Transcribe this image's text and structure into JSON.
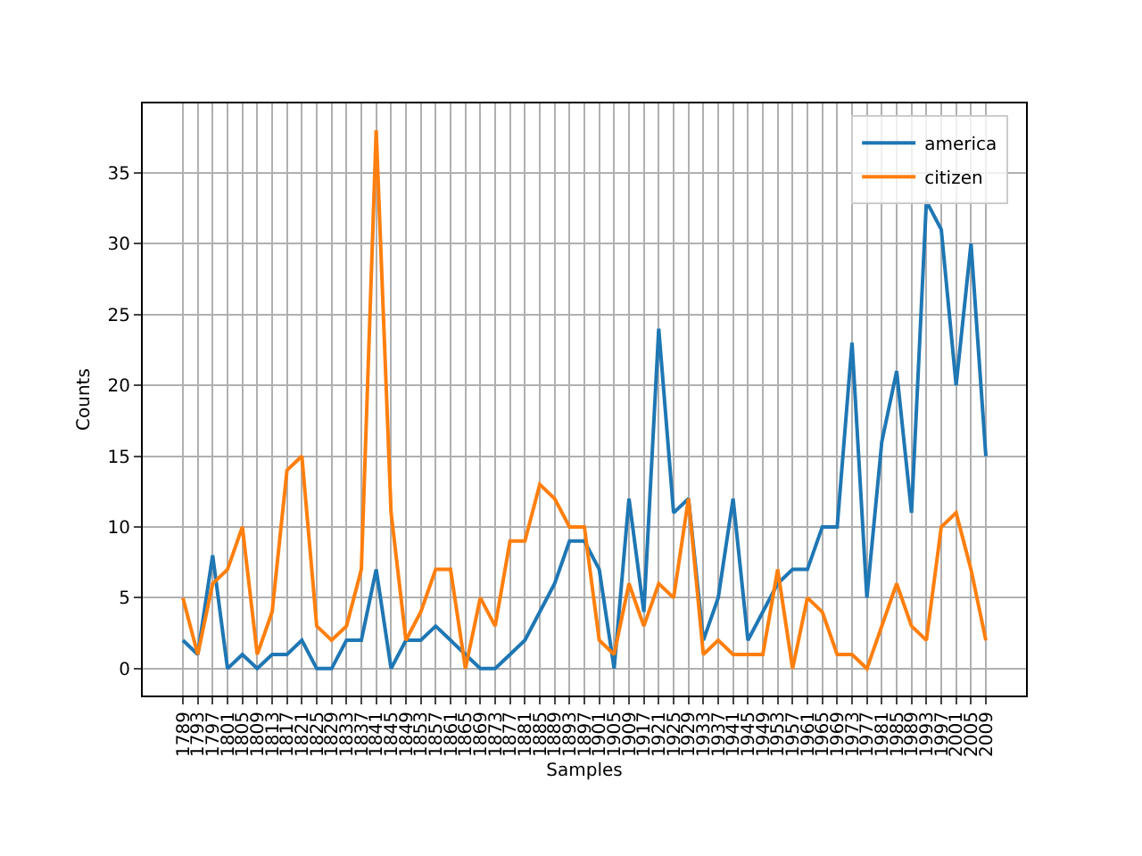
{
  "chart_data": {
    "type": "line",
    "xlabel": "Samples",
    "ylabel": "Counts",
    "categories": [
      "1789",
      "1793",
      "1797",
      "1801",
      "1805",
      "1809",
      "1813",
      "1817",
      "1821",
      "1825",
      "1829",
      "1833",
      "1837",
      "1841",
      "1845",
      "1849",
      "1853",
      "1857",
      "1861",
      "1865",
      "1869",
      "1873",
      "1877",
      "1881",
      "1885",
      "1889",
      "1893",
      "1897",
      "1901",
      "1905",
      "1909",
      "1917",
      "1921",
      "1925",
      "1929",
      "1933",
      "1937",
      "1941",
      "1945",
      "1949",
      "1953",
      "1957",
      "1961",
      "1965",
      "1969",
      "1973",
      "1977",
      "1981",
      "1985",
      "1989",
      "1993",
      "1997",
      "2001",
      "2005",
      "2009"
    ],
    "series": [
      {
        "name": "america",
        "color": "#1f77b4",
        "values": [
          2,
          1,
          8,
          0,
          1,
          0,
          1,
          1,
          2,
          0,
          0,
          2,
          2,
          7,
          0,
          2,
          2,
          3,
          2,
          1,
          0,
          0,
          1,
          2,
          4,
          6,
          9,
          9,
          7,
          0,
          12,
          4,
          24,
          11,
          12,
          2,
          5,
          12,
          2,
          4,
          6,
          7,
          7,
          10,
          10,
          23,
          5,
          16,
          21,
          11,
          33,
          31,
          20,
          30,
          15
        ]
      },
      {
        "name": "citizen",
        "color": "#ff7f0e",
        "values": [
          5,
          1,
          6,
          7,
          10,
          1,
          4,
          14,
          15,
          3,
          2,
          3,
          7,
          38,
          11,
          2,
          4,
          7,
          7,
          0,
          5,
          3,
          9,
          9,
          13,
          12,
          10,
          10,
          2,
          1,
          6,
          3,
          6,
          5,
          12,
          1,
          2,
          1,
          1,
          1,
          7,
          0,
          5,
          4,
          1,
          1,
          0,
          3,
          6,
          3,
          2,
          10,
          11,
          7,
          2
        ]
      }
    ],
    "ylim": [
      -1.9,
      39.9
    ],
    "yticks": [
      0,
      5,
      10,
      15,
      20,
      25,
      30,
      35
    ],
    "grid": true,
    "legend": "top right",
    "marker": "none",
    "line_style": "solid"
  }
}
